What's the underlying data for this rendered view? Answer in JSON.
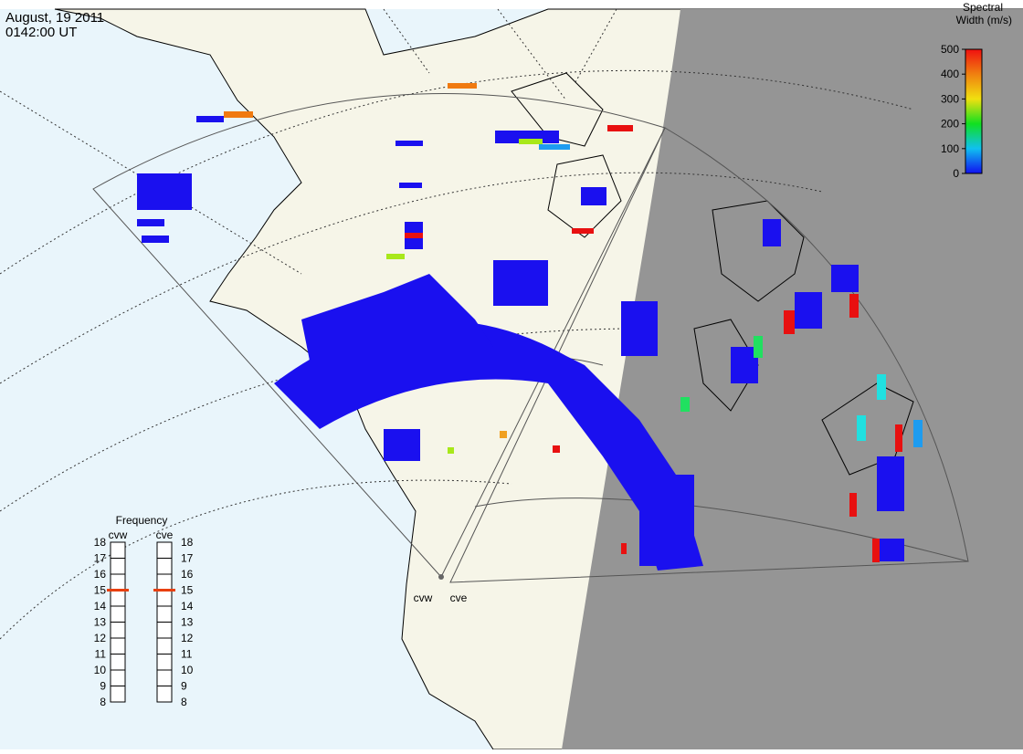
{
  "header": {
    "date": "August, 19 2011",
    "time": "0142:00 UT"
  },
  "colorbar": {
    "title": [
      "Spectral",
      "Width (m/s)"
    ],
    "range": [
      0,
      500
    ],
    "ticks": [
      0,
      100,
      200,
      300,
      400,
      500
    ]
  },
  "frequency": {
    "title": "Frequency",
    "range": [
      8,
      18
    ],
    "ticks": [
      8,
      9,
      10,
      11,
      12,
      13,
      14,
      15,
      16,
      17,
      18
    ],
    "radars": [
      {
        "name": "cvw",
        "value": 15
      },
      {
        "name": "cve",
        "value": 15
      }
    ]
  },
  "radars": [
    "cvw",
    "cve"
  ]
}
